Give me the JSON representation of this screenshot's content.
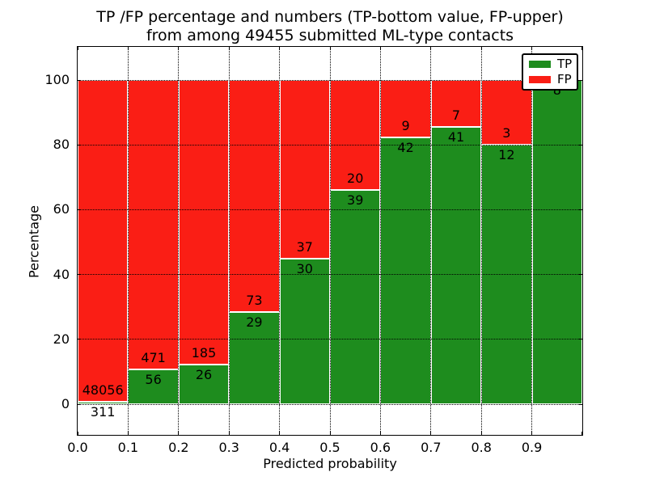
{
  "figure": {
    "title_line1": "TP /FP percentage and numbers (TP-bottom value, FP-upper)",
    "title_line2": "from among 49455 submitted ML-type contacts"
  },
  "chart_data": {
    "type": "bar",
    "stacked": true,
    "orientation": "vertical",
    "total_contacts": 49455,
    "x_bin_edges": [
      0.0,
      0.1,
      0.2,
      0.3,
      0.4,
      0.5,
      0.6,
      0.7,
      0.8,
      0.9,
      1.0
    ],
    "categories": [
      "0.0-0.1",
      "0.1-0.2",
      "0.2-0.3",
      "0.3-0.4",
      "0.4-0.5",
      "0.5-0.6",
      "0.6-0.7",
      "0.7-0.8",
      "0.8-0.9",
      "0.9-1.0"
    ],
    "series": [
      {
        "name": "TP",
        "color": "#1e8c1e",
        "values": [
          311,
          56,
          26,
          29,
          30,
          39,
          42,
          41,
          12,
          8
        ]
      },
      {
        "name": "FP",
        "color": "#fa1e15",
        "values": [
          48056,
          471,
          185,
          73,
          37,
          20,
          9,
          7,
          3,
          0
        ]
      }
    ],
    "tp_percent": [
      0.64,
      10.63,
      12.32,
      28.43,
      44.78,
      66.1,
      82.35,
      85.42,
      80.0,
      100.0
    ],
    "xlabel": "Predicted probability",
    "ylabel": "Percentage",
    "x_tick_labels": [
      "0.0",
      "0.1",
      "0.2",
      "0.3",
      "0.4",
      "0.5",
      "0.6",
      "0.7",
      "0.8",
      "0.9"
    ],
    "y_ticks": [
      0,
      20,
      40,
      60,
      80,
      100
    ],
    "y_tick_labels": [
      "0",
      "20",
      "40",
      "60",
      "80",
      "100"
    ],
    "xlim": [
      0.0,
      1.0
    ],
    "ylim": [
      -9.5,
      110.2
    ],
    "grid": "on, dotted black",
    "legend": {
      "position": "upper right",
      "entries": [
        {
          "label": "TP",
          "color": "#1e8c1e"
        },
        {
          "label": "FP",
          "color": "#fa1e15"
        }
      ]
    }
  }
}
